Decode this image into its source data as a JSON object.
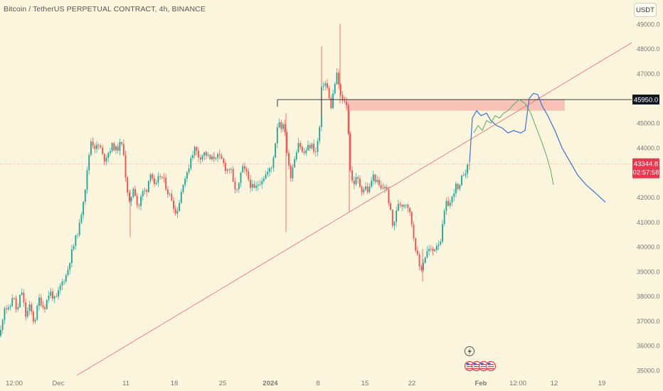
{
  "header": {
    "symbol_title": "Bitcoin / TetherUS PERPETUAL CONTRACT, 4h, BINANCE"
  },
  "currency_button": {
    "label": "USDT"
  },
  "colors": {
    "background": "#fbf5de",
    "candle_up": "#26a69a",
    "candle_down": "#ef5350",
    "trendline": "#f08080",
    "resistance_zone": "#f7b9b0",
    "projection_blue": "#3f6fd8",
    "projection_green": "#5cab62",
    "price_tag": "#e8384f",
    "level_tag": "#131722"
  },
  "icons": [
    "lightning-icon",
    "us-flag-icon"
  ],
  "chart_data": {
    "type": "candlestick",
    "title": "Bitcoin / TetherUS PERPETUAL CONTRACT, 4h, BINANCE",
    "x_ticks": [
      "12:00",
      "Dec",
      "11",
      "18",
      "25",
      "2024",
      "8",
      "15",
      "22",
      "Feb",
      "12:00",
      "12",
      "19"
    ],
    "y_ticks": [
      "49000.0",
      "48000.0",
      "47000.0",
      "46000.0",
      "45000.0",
      "44000.0",
      "42000.0",
      "41000.0",
      "40000.0",
      "39000.0",
      "38000.0",
      "37000.0",
      "36000.0",
      "35000.0"
    ],
    "ylim": [
      34800,
      49400
    ],
    "current_price": {
      "value": "43344.8",
      "countdown": "02:57:58"
    },
    "horizontal_level": {
      "value": "45950.0"
    },
    "resistance_zone": {
      "low": 45500,
      "high": 45950
    },
    "trendline": {
      "start_price": 34800,
      "end_price": 48250
    },
    "price_path": [
      [
        0,
        36400
      ],
      [
        6,
        37600
      ],
      [
        13,
        37400
      ],
      [
        18,
        38100
      ],
      [
        24,
        37300
      ],
      [
        30,
        38300
      ],
      [
        36,
        37200
      ],
      [
        42,
        37600
      ],
      [
        48,
        36900
      ],
      [
        55,
        37900
      ],
      [
        62,
        37500
      ],
      [
        70,
        38200
      ],
      [
        78,
        37800
      ],
      [
        86,
        38500
      ],
      [
        94,
        38900
      ],
      [
        100,
        39700
      ],
      [
        106,
        40300
      ],
      [
        112,
        40900
      ],
      [
        117,
        41900
      ],
      [
        121,
        42600
      ],
      [
        125,
        43700
      ],
      [
        128,
        44300
      ],
      [
        134,
        44000
      ],
      [
        140,
        44100
      ],
      [
        146,
        43500
      ],
      [
        152,
        43800
      ],
      [
        158,
        44100
      ],
      [
        164,
        43900
      ],
      [
        170,
        44200
      ],
      [
        174,
        43800
      ],
      [
        178,
        42300
      ],
      [
        182,
        41700
      ],
      [
        188,
        42500
      ],
      [
        194,
        41500
      ],
      [
        200,
        42200
      ],
      [
        206,
        42300
      ],
      [
        212,
        43100
      ],
      [
        218,
        42300
      ],
      [
        224,
        42900
      ],
      [
        230,
        42700
      ],
      [
        236,
        42200
      ],
      [
        242,
        41900
      ],
      [
        247,
        41300
      ],
      [
        252,
        41800
      ],
      [
        258,
        42700
      ],
      [
        263,
        42900
      ],
      [
        268,
        43600
      ],
      [
        274,
        44000
      ],
      [
        280,
        43600
      ],
      [
        288,
        43800
      ],
      [
        296,
        43500
      ],
      [
        304,
        43700
      ],
      [
        312,
        43500
      ],
      [
        318,
        43100
      ],
      [
        324,
        43200
      ],
      [
        328,
        42500
      ],
      [
        334,
        42200
      ],
      [
        340,
        43200
      ],
      [
        346,
        43000
      ],
      [
        352,
        42500
      ],
      [
        358,
        42300
      ],
      [
        364,
        42600
      ],
      [
        370,
        42800
      ],
      [
        376,
        43000
      ],
      [
        382,
        43200
      ],
      [
        387,
        44200
      ],
      [
        391,
        45200
      ],
      [
        396,
        44800
      ],
      [
        400,
        44900
      ],
      [
        404,
        43600
      ],
      [
        408,
        42800
      ],
      [
        414,
        43600
      ],
      [
        420,
        44300
      ],
      [
        426,
        43700
      ],
      [
        432,
        44000
      ],
      [
        438,
        44100
      ],
      [
        444,
        43800
      ],
      [
        449,
        44700
      ],
      [
        452,
        46400
      ],
      [
        456,
        46700
      ],
      [
        460,
        46400
      ],
      [
        465,
        45600
      ],
      [
        470,
        46500
      ],
      [
        474,
        47000
      ],
      [
        478,
        46200
      ],
      [
        482,
        45800
      ],
      [
        486,
        46000
      ],
      [
        489,
        45100
      ],
      [
        492,
        43200
      ],
      [
        496,
        42500
      ],
      [
        502,
        42800
      ],
      [
        508,
        42300
      ],
      [
        514,
        42400
      ],
      [
        518,
        42200
      ],
      [
        524,
        42900
      ],
      [
        530,
        42600
      ],
      [
        536,
        42300
      ],
      [
        542,
        42500
      ],
      [
        548,
        41600
      ],
      [
        552,
        40800
      ],
      [
        556,
        41200
      ],
      [
        560,
        41800
      ],
      [
        566,
        41700
      ],
      [
        572,
        41800
      ],
      [
        578,
        41100
      ],
      [
        582,
        40300
      ],
      [
        586,
        39700
      ],
      [
        591,
        39000
      ],
      [
        596,
        39500
      ],
      [
        602,
        39900
      ],
      [
        608,
        39800
      ],
      [
        614,
        40100
      ],
      [
        620,
        40300
      ],
      [
        624,
        41300
      ],
      [
        628,
        41800
      ],
      [
        632,
        41700
      ],
      [
        636,
        42000
      ],
      [
        640,
        42500
      ],
      [
        645,
        42200
      ],
      [
        650,
        42900
      ],
      [
        655,
        43100
      ],
      [
        660,
        43345
      ]
    ],
    "projection_blue": [
      [
        660,
        43400
      ],
      [
        664,
        45200
      ],
      [
        670,
        45500
      ],
      [
        676,
        45300
      ],
      [
        684,
        45400
      ],
      [
        690,
        45100
      ],
      [
        698,
        44900
      ],
      [
        706,
        44800
      ],
      [
        714,
        44600
      ],
      [
        722,
        44700
      ],
      [
        732,
        44600
      ],
      [
        738,
        44700
      ],
      [
        744,
        46000
      ],
      [
        750,
        46200
      ],
      [
        756,
        46150
      ],
      [
        762,
        45700
      ],
      [
        770,
        45300
      ],
      [
        780,
        44700
      ],
      [
        790,
        44000
      ],
      [
        800,
        43500
      ],
      [
        812,
        42900
      ],
      [
        824,
        42500
      ],
      [
        836,
        42200
      ],
      [
        851,
        41800
      ]
    ],
    "projection_green": [
      [
        666,
        44600
      ],
      [
        672,
        44900
      ],
      [
        678,
        44700
      ],
      [
        684,
        45100
      ],
      [
        690,
        45000
      ],
      [
        696,
        45300
      ],
      [
        702,
        45200
      ],
      [
        708,
        45400
      ],
      [
        714,
        45500
      ],
      [
        722,
        45750
      ],
      [
        730,
        45950
      ],
      [
        738,
        45800
      ],
      [
        746,
        45400
      ],
      [
        754,
        44800
      ],
      [
        762,
        44200
      ],
      [
        768,
        43700
      ],
      [
        774,
        43100
      ],
      [
        778,
        42500
      ]
    ]
  }
}
